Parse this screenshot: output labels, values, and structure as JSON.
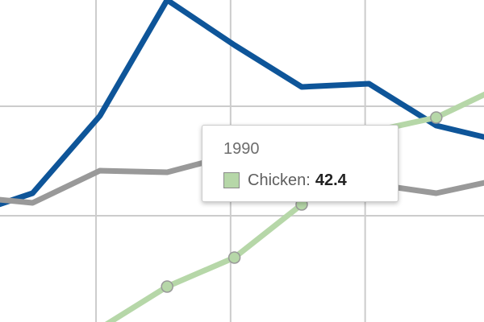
{
  "chart_data": {
    "type": "line",
    "grid": true,
    "legend": "none",
    "x": [
      0,
      1,
      2,
      3,
      4,
      5,
      6,
      7,
      8
    ],
    "ylim": [
      0,
      100
    ],
    "series": [
      {
        "color": "#0e5599",
        "values": [
          33,
          40,
          64,
          100,
          86,
          73,
          74,
          61,
          56
        ]
      },
      {
        "color": "#999999",
        "values": [
          39,
          37,
          47,
          46.5,
          52,
          55,
          43,
          40,
          44.5
        ]
      },
      {
        "color": "#b6d7a8",
        "values": [
          null,
          null,
          -2,
          11,
          20,
          36.5,
          59,
          63.5,
          73.5
        ],
        "markers": true
      }
    ],
    "tooltip": {
      "title": "1990",
      "series_name": "Chicken",
      "value": "42.4",
      "swatch_color": "#b6d7a8"
    }
  }
}
